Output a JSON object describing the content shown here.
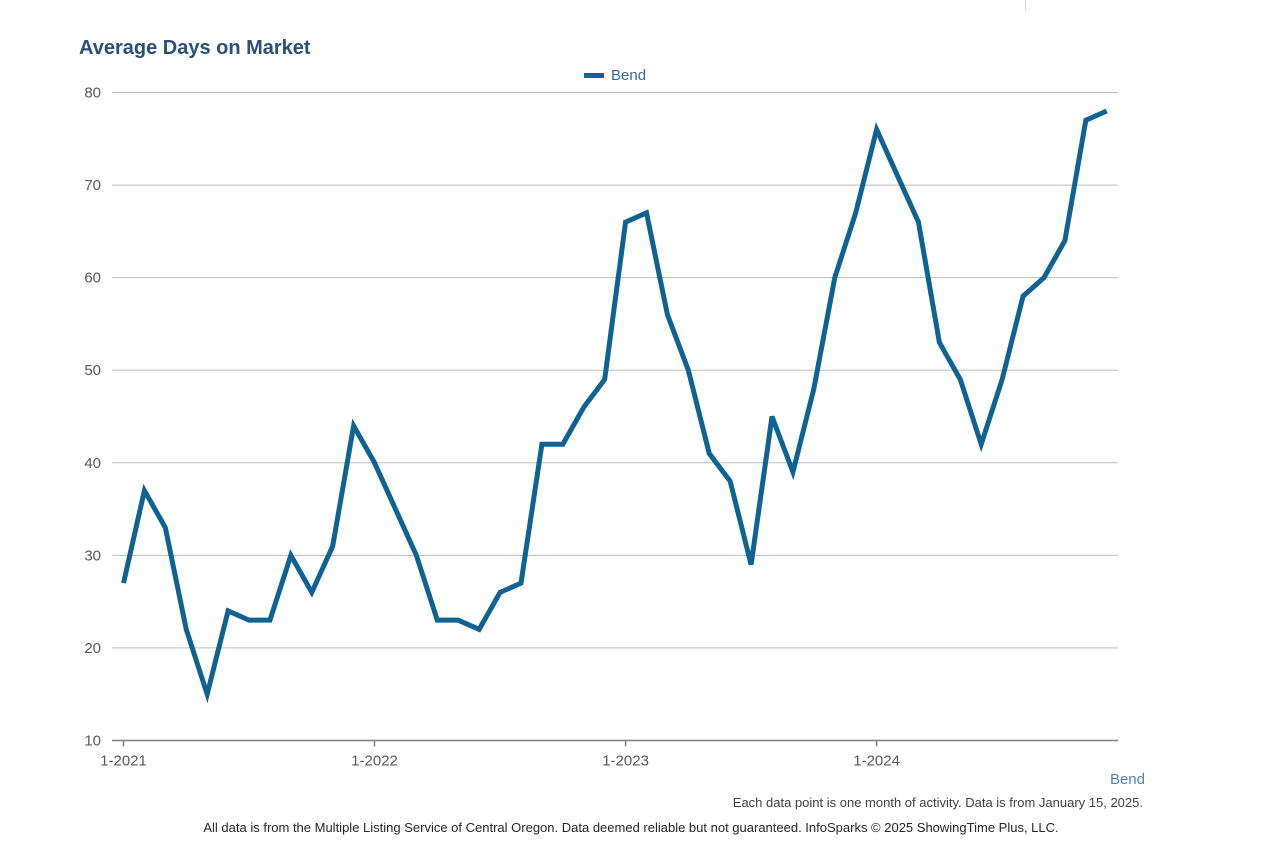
{
  "chart_data": {
    "type": "line",
    "title": "Average Days on Market",
    "xlabel": "",
    "ylabel": "",
    "ylim": [
      10,
      80
    ],
    "yticks": [
      10,
      20,
      30,
      40,
      50,
      60,
      70,
      80
    ],
    "xtick_labels": [
      "1-2021",
      "1-2022",
      "1-2023",
      "1-2024"
    ],
    "xtick_positions": [
      0,
      12,
      24,
      36
    ],
    "series": [
      {
        "name": "Bend",
        "color": "#0f6292",
        "x": [
          "1-2021",
          "2-2021",
          "3-2021",
          "4-2021",
          "5-2021",
          "6-2021",
          "7-2021",
          "8-2021",
          "9-2021",
          "10-2021",
          "11-2021",
          "12-2021",
          "1-2022",
          "2-2022",
          "3-2022",
          "4-2022",
          "5-2022",
          "6-2022",
          "7-2022",
          "8-2022",
          "9-2022",
          "10-2022",
          "11-2022",
          "12-2022",
          "1-2023",
          "2-2023",
          "3-2023",
          "4-2023",
          "5-2023",
          "6-2023",
          "7-2023",
          "8-2023",
          "9-2023",
          "10-2023",
          "11-2023",
          "12-2023",
          "1-2024",
          "2-2024",
          "3-2024",
          "4-2024",
          "5-2024",
          "6-2024",
          "7-2024",
          "8-2024",
          "9-2024",
          "10-2024",
          "11-2024",
          "12-2024"
        ],
        "values": [
          27,
          37,
          33,
          22,
          15,
          24,
          23,
          23,
          30,
          26,
          31,
          44,
          40,
          35,
          30,
          23,
          23,
          22,
          26,
          27,
          42,
          42,
          46,
          49,
          66,
          67,
          56,
          50,
          41,
          38,
          29,
          45,
          39,
          48,
          60,
          67,
          76,
          71,
          66,
          53,
          49,
          42,
          49,
          58,
          60,
          64,
          77,
          78
        ]
      }
    ],
    "legend": "top-center",
    "grid": true
  },
  "legend_label": "Bend",
  "series_tag": "Bend",
  "note": "Each data point is one month of activity. Data is from January 15, 2025.",
  "footer": "All data is from the Multiple Listing Service of Central Oregon. Data deemed reliable but not guaranteed. InfoSparks © 2025 ShowingTime Plus, LLC."
}
